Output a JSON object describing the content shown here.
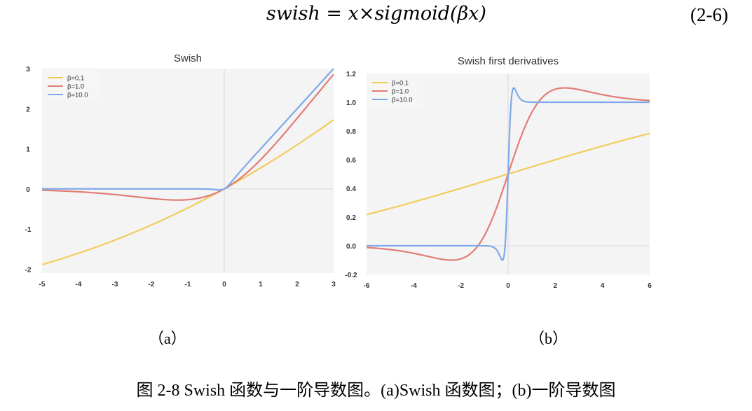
{
  "equation": {
    "text": "swish = x×sigmoid(βx)",
    "number": "(2-6)"
  },
  "panel_labels": {
    "a": "（a）",
    "b": "（b）"
  },
  "caption": "图 2-8 Swish 函数与一阶导数图。(a)Swish 函数图；(b)一阶导数图",
  "colors": {
    "beta_0_1": "#f2cc5c",
    "beta_1_0": "#e27d76",
    "beta_10_0": "#7fa8ea",
    "plot_bg": "#f4f4f4",
    "zero_line": "#dcdcdc"
  },
  "chart_data": [
    {
      "type": "line",
      "title": "Swish",
      "xlabel": "",
      "ylabel": "",
      "xlim": [
        -5,
        3
      ],
      "ylim": [
        -2.1,
        3.0
      ],
      "xticks": [
        "-5",
        "-4",
        "-3",
        "-2",
        "-1",
        "0",
        "1",
        "2",
        "3"
      ],
      "yticks": [
        "3",
        "2",
        "1",
        "0",
        "-1",
        "-2"
      ],
      "legend_position": "top-left",
      "grid": false,
      "series": [
        {
          "name": "β=0.1",
          "function": "swish",
          "beta": 0.1
        },
        {
          "name": "β=1.0",
          "function": "swish",
          "beta": 1.0
        },
        {
          "name": "β=10.0",
          "function": "swish",
          "beta": 10.0
        }
      ]
    },
    {
      "type": "line",
      "title": "Swish first derivatives",
      "xlabel": "",
      "ylabel": "",
      "xlim": [
        -6,
        6
      ],
      "ylim": [
        -0.2,
        1.2
      ],
      "xticks": [
        "-6",
        "-4",
        "-2",
        "0",
        "2",
        "4",
        "6"
      ],
      "yticks": [
        "1.2",
        "1.0",
        "0.8",
        "0.6",
        "0.4",
        "0.2",
        "0.0",
        "-0.2"
      ],
      "legend_position": "top-left",
      "grid": false,
      "series": [
        {
          "name": "β=0.1",
          "function": "swish_derivative",
          "beta": 0.1
        },
        {
          "name": "β=1.0",
          "function": "swish_derivative",
          "beta": 1.0
        },
        {
          "name": "β=10.0",
          "function": "swish_derivative",
          "beta": 10.0
        }
      ]
    }
  ]
}
